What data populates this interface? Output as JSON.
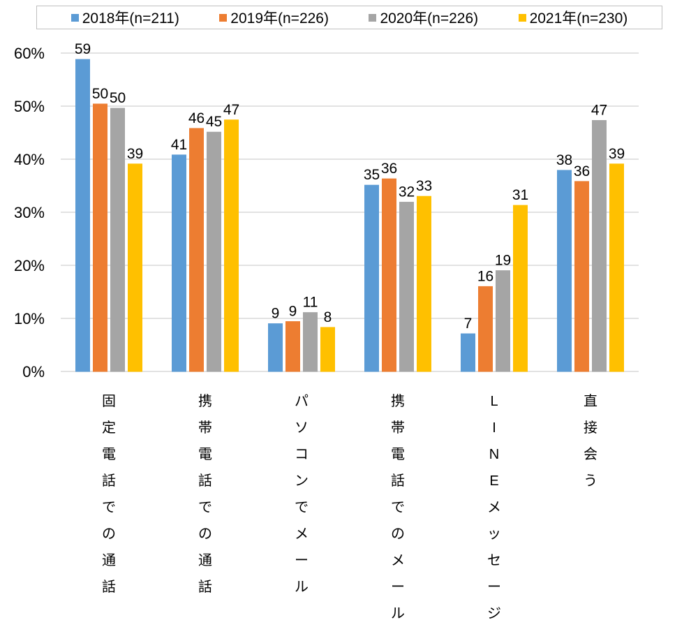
{
  "chart_data": {
    "type": "bar",
    "title": "",
    "xlabel": "",
    "ylabel": "",
    "ylim": [
      0,
      60
    ],
    "yticks": [
      0,
      10,
      20,
      30,
      40,
      50,
      60
    ],
    "ytick_labels": [
      "0%",
      "10%",
      "20%",
      "30%",
      "40%",
      "50%",
      "60%"
    ],
    "grid": true,
    "legend_position": "top",
    "categories": [
      "固定電話での通話",
      "携帯電話での通話",
      "パソコンでメール",
      "携帯電話でのメール",
      "LINEメッセージ",
      "直接会う"
    ],
    "category_labels_vertical": [
      [
        "固",
        "定",
        "電",
        "話",
        "で",
        "の",
        "通",
        "話"
      ],
      [
        "携",
        "帯",
        "電",
        "話",
        "で",
        "の",
        "通",
        "話"
      ],
      [
        "パ",
        "ソ",
        "コ",
        "ン",
        "で",
        "メ",
        "ー",
        "ル"
      ],
      [
        "携",
        "帯",
        "電",
        "話",
        "で",
        "の",
        "メ",
        "ー",
        "ル"
      ],
      [
        "L",
        "I",
        "N",
        "E",
        "メ",
        "ッ",
        "セ",
        "ー",
        "ジ"
      ],
      [
        "直",
        "接",
        "会",
        "う"
      ]
    ],
    "series": [
      {
        "name": "2018年(n=211)",
        "color": "#5b9bd5",
        "values": [
          58.8,
          40.8,
          9.0,
          35.1,
          7.1,
          37.9
        ],
        "labels": [
          "59",
          "41",
          "9",
          "35",
          "7",
          "38"
        ]
      },
      {
        "name": "2019年(n=226)",
        "color": "#ed7d31",
        "values": [
          50.4,
          45.8,
          9.4,
          36.3,
          16.0,
          35.8
        ],
        "labels": [
          "50",
          "46",
          "9",
          "36",
          "16",
          "36"
        ]
      },
      {
        "name": "2020年(n=226)",
        "color": "#a5a5a5",
        "values": [
          49.6,
          45.1,
          11.1,
          31.9,
          19.0,
          47.3
        ],
        "labels": [
          "50",
          "45",
          "11",
          "32",
          "19",
          "47"
        ]
      },
      {
        "name": "2021年(n=230)",
        "color": "#ffc000",
        "values": [
          39.1,
          47.4,
          8.3,
          33.0,
          31.3,
          39.1
        ],
        "labels": [
          "39",
          "47",
          "8",
          "33",
          "31",
          "39"
        ]
      }
    ]
  }
}
